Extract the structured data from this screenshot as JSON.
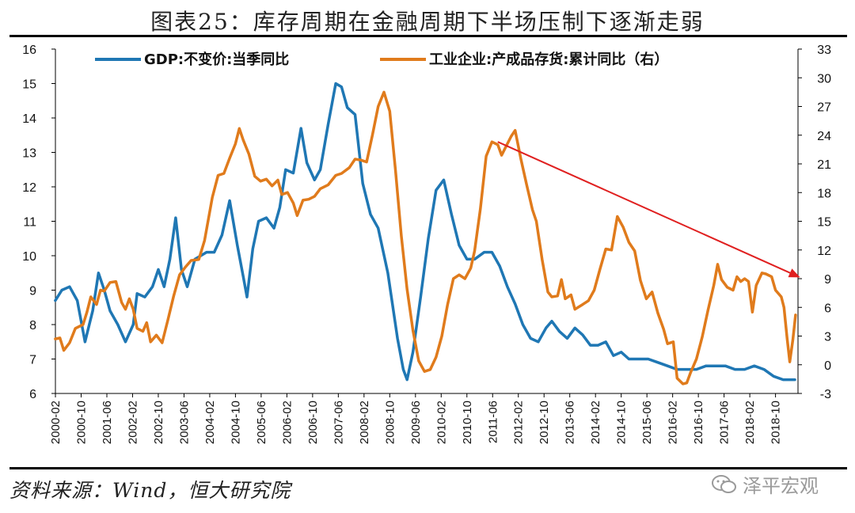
{
  "title": "图表25：库存周期在金融周期下半场压制下逐渐走弱",
  "source": "资料来源：Wind，恒大研究院",
  "watermark": "泽平宏观",
  "colors": {
    "gdp": "#1f77b4",
    "inventory": "#e07b1c",
    "arrow": "#e02020"
  },
  "chart_data": {
    "type": "line",
    "title": "图表25：库存周期在金融周期下半场压制下逐渐走弱",
    "left_axis": {
      "min": 6,
      "max": 16,
      "ticks": [
        6,
        7,
        8,
        9,
        10,
        11,
        12,
        13,
        14,
        15,
        16
      ]
    },
    "right_axis": {
      "min": -3,
      "max": 33,
      "ticks": [
        -3,
        0,
        3,
        6,
        9,
        12,
        15,
        18,
        21,
        24,
        27,
        30,
        33
      ]
    },
    "x_range": [
      2000.083,
      2019.333
    ],
    "x_tick_labels": [
      "2000-02",
      "2000-10",
      "2001-06",
      "2002-02",
      "2002-10",
      "2003-06",
      "2004-02",
      "2004-10",
      "2005-06",
      "2006-02",
      "2006-10",
      "2007-06",
      "2008-02",
      "2008-10",
      "2009-06",
      "2010-02",
      "2010-10",
      "2011-06",
      "2012-02",
      "2012-10",
      "2013-06",
      "2014-02",
      "2014-10",
      "2015-06",
      "2016-02",
      "2016-10",
      "2017-06",
      "2018-02",
      "2018-10"
    ],
    "series": [
      {
        "name": "GDP:不变价:当季同比",
        "axis": "left",
        "color": "#1f77b4",
        "points": [
          [
            2000.08,
            8.7
          ],
          [
            2000.25,
            9.0
          ],
          [
            2000.45,
            9.1
          ],
          [
            2000.65,
            8.7
          ],
          [
            2000.85,
            7.5
          ],
          [
            2001.05,
            8.4
          ],
          [
            2001.2,
            9.5
          ],
          [
            2001.35,
            9.0
          ],
          [
            2001.5,
            8.4
          ],
          [
            2001.7,
            8.0
          ],
          [
            2001.9,
            7.5
          ],
          [
            2002.1,
            8.0
          ],
          [
            2002.2,
            8.9
          ],
          [
            2002.4,
            8.8
          ],
          [
            2002.6,
            9.1
          ],
          [
            2002.75,
            9.6
          ],
          [
            2002.9,
            9.1
          ],
          [
            2003.05,
            9.9
          ],
          [
            2003.2,
            11.1
          ],
          [
            2003.35,
            9.6
          ],
          [
            2003.5,
            9.1
          ],
          [
            2003.7,
            9.9
          ],
          [
            2003.85,
            10.0
          ],
          [
            2004.0,
            10.1
          ],
          [
            2004.2,
            10.1
          ],
          [
            2004.4,
            10.6
          ],
          [
            2004.6,
            11.6
          ],
          [
            2004.8,
            10.3
          ],
          [
            2004.95,
            9.4
          ],
          [
            2005.05,
            8.8
          ],
          [
            2005.2,
            10.2
          ],
          [
            2005.35,
            11.0
          ],
          [
            2005.55,
            11.1
          ],
          [
            2005.75,
            10.8
          ],
          [
            2005.9,
            11.4
          ],
          [
            2006.05,
            12.5
          ],
          [
            2006.25,
            12.4
          ],
          [
            2006.45,
            13.7
          ],
          [
            2006.6,
            12.7
          ],
          [
            2006.8,
            12.2
          ],
          [
            2006.95,
            12.5
          ],
          [
            2007.15,
            13.8
          ],
          [
            2007.35,
            15.0
          ],
          [
            2007.5,
            14.9
          ],
          [
            2007.65,
            14.3
          ],
          [
            2007.85,
            14.1
          ],
          [
            2008.05,
            12.1
          ],
          [
            2008.25,
            11.2
          ],
          [
            2008.45,
            10.8
          ],
          [
            2008.7,
            9.5
          ],
          [
            2008.95,
            7.6
          ],
          [
            2009.1,
            6.7
          ],
          [
            2009.2,
            6.4
          ],
          [
            2009.35,
            7.2
          ],
          [
            2009.55,
            8.8
          ],
          [
            2009.75,
            10.5
          ],
          [
            2009.95,
            11.9
          ],
          [
            2010.15,
            12.2
          ],
          [
            2010.35,
            11.2
          ],
          [
            2010.55,
            10.3
          ],
          [
            2010.75,
            9.9
          ],
          [
            2010.95,
            9.9
          ],
          [
            2011.2,
            10.1
          ],
          [
            2011.4,
            10.1
          ],
          [
            2011.6,
            9.7
          ],
          [
            2011.8,
            9.1
          ],
          [
            2012.0,
            8.6
          ],
          [
            2012.2,
            8.0
          ],
          [
            2012.4,
            7.6
          ],
          [
            2012.6,
            7.5
          ],
          [
            2012.8,
            7.9
          ],
          [
            2012.95,
            8.1
          ],
          [
            2013.15,
            7.8
          ],
          [
            2013.35,
            7.6
          ],
          [
            2013.55,
            7.9
          ],
          [
            2013.75,
            7.7
          ],
          [
            2013.95,
            7.4
          ],
          [
            2014.15,
            7.4
          ],
          [
            2014.35,
            7.5
          ],
          [
            2014.55,
            7.1
          ],
          [
            2014.75,
            7.2
          ],
          [
            2014.95,
            7.0
          ],
          [
            2015.2,
            7.0
          ],
          [
            2015.45,
            7.0
          ],
          [
            2015.7,
            6.9
          ],
          [
            2015.95,
            6.8
          ],
          [
            2016.2,
            6.7
          ],
          [
            2016.45,
            6.7
          ],
          [
            2016.7,
            6.7
          ],
          [
            2016.95,
            6.8
          ],
          [
            2017.2,
            6.8
          ],
          [
            2017.45,
            6.8
          ],
          [
            2017.7,
            6.7
          ],
          [
            2017.95,
            6.7
          ],
          [
            2018.2,
            6.8
          ],
          [
            2018.45,
            6.7
          ],
          [
            2018.7,
            6.5
          ],
          [
            2018.95,
            6.4
          ],
          [
            2019.25,
            6.4
          ]
        ]
      },
      {
        "name": "工业企业:产成品存货:累计同比（右）",
        "axis": "right",
        "color": "#e07b1c",
        "points": [
          [
            2000.08,
            2.7
          ],
          [
            2000.2,
            2.8
          ],
          [
            2000.3,
            1.5
          ],
          [
            2000.45,
            2.3
          ],
          [
            2000.6,
            3.8
          ],
          [
            2000.8,
            4.2
          ],
          [
            2000.9,
            5.5
          ],
          [
            2001.0,
            7.1
          ],
          [
            2001.15,
            6.3
          ],
          [
            2001.25,
            7.8
          ],
          [
            2001.35,
            7.7
          ],
          [
            2001.5,
            8.6
          ],
          [
            2001.65,
            8.7
          ],
          [
            2001.8,
            6.5
          ],
          [
            2001.9,
            5.8
          ],
          [
            2002.0,
            6.9
          ],
          [
            2002.1,
            5.8
          ],
          [
            2002.2,
            3.8
          ],
          [
            2002.35,
            3.5
          ],
          [
            2002.45,
            4.4
          ],
          [
            2002.55,
            2.4
          ],
          [
            2002.7,
            3.1
          ],
          [
            2002.85,
            2.3
          ],
          [
            2003.0,
            4.7
          ],
          [
            2003.15,
            7.2
          ],
          [
            2003.3,
            9.4
          ],
          [
            2003.45,
            10.2
          ],
          [
            2003.6,
            10.9
          ],
          [
            2003.8,
            11.0
          ],
          [
            2003.95,
            13.0
          ],
          [
            2004.15,
            17.5
          ],
          [
            2004.3,
            19.8
          ],
          [
            2004.45,
            20.0
          ],
          [
            2004.6,
            21.6
          ],
          [
            2004.75,
            23.1
          ],
          [
            2004.85,
            24.7
          ],
          [
            2004.95,
            23.5
          ],
          [
            2005.1,
            22.0
          ],
          [
            2005.25,
            19.7
          ],
          [
            2005.4,
            19.2
          ],
          [
            2005.55,
            19.4
          ],
          [
            2005.7,
            18.7
          ],
          [
            2005.85,
            19.3
          ],
          [
            2005.95,
            17.8
          ],
          [
            2006.1,
            18.0
          ],
          [
            2006.25,
            16.9
          ],
          [
            2006.35,
            15.6
          ],
          [
            2006.5,
            17.2
          ],
          [
            2006.65,
            17.3
          ],
          [
            2006.8,
            17.6
          ],
          [
            2006.95,
            18.4
          ],
          [
            2007.15,
            18.8
          ],
          [
            2007.35,
            19.8
          ],
          [
            2007.5,
            20.0
          ],
          [
            2007.7,
            20.6
          ],
          [
            2007.85,
            21.5
          ],
          [
            2008.0,
            21.4
          ],
          [
            2008.15,
            21.2
          ],
          [
            2008.3,
            24.0
          ],
          [
            2008.45,
            27.0
          ],
          [
            2008.6,
            28.5
          ],
          [
            2008.75,
            26.5
          ],
          [
            2008.9,
            20.3
          ],
          [
            2009.05,
            13.5
          ],
          [
            2009.2,
            7.9
          ],
          [
            2009.35,
            3.6
          ],
          [
            2009.5,
            0.4
          ],
          [
            2009.65,
            -0.7
          ],
          [
            2009.8,
            -0.5
          ],
          [
            2009.95,
            0.8
          ],
          [
            2010.1,
            3.0
          ],
          [
            2010.25,
            6.3
          ],
          [
            2010.4,
            9.0
          ],
          [
            2010.55,
            9.4
          ],
          [
            2010.7,
            9.0
          ],
          [
            2010.85,
            10.1
          ],
          [
            2010.95,
            11.9
          ],
          [
            2011.1,
            16.3
          ],
          [
            2011.25,
            21.8
          ],
          [
            2011.4,
            23.3
          ],
          [
            2011.55,
            23.0
          ],
          [
            2011.65,
            21.9
          ],
          [
            2011.8,
            23.1
          ],
          [
            2011.9,
            23.9
          ],
          [
            2012.0,
            24.5
          ],
          [
            2012.15,
            21.5
          ],
          [
            2012.3,
            18.8
          ],
          [
            2012.45,
            16.2
          ],
          [
            2012.55,
            15.0
          ],
          [
            2012.7,
            11.0
          ],
          [
            2012.85,
            7.6
          ],
          [
            2012.95,
            7.1
          ],
          [
            2013.1,
            7.2
          ],
          [
            2013.2,
            8.9
          ],
          [
            2013.3,
            6.9
          ],
          [
            2013.45,
            7.3
          ],
          [
            2013.55,
            5.8
          ],
          [
            2013.75,
            6.3
          ],
          [
            2013.9,
            6.7
          ],
          [
            2014.05,
            7.8
          ],
          [
            2014.2,
            10.0
          ],
          [
            2014.35,
            12.1
          ],
          [
            2014.5,
            12.0
          ],
          [
            2014.65,
            15.5
          ],
          [
            2014.8,
            14.4
          ],
          [
            2014.95,
            12.8
          ],
          [
            2015.1,
            11.9
          ],
          [
            2015.25,
            8.8
          ],
          [
            2015.4,
            6.9
          ],
          [
            2015.55,
            7.6
          ],
          [
            2015.7,
            5.4
          ],
          [
            2015.85,
            3.7
          ],
          [
            2015.95,
            2.2
          ],
          [
            2016.1,
            2.4
          ],
          [
            2016.2,
            -1.4
          ],
          [
            2016.35,
            -2.0
          ],
          [
            2016.45,
            -1.9
          ],
          [
            2016.55,
            -0.8
          ],
          [
            2016.7,
            0.6
          ],
          [
            2016.85,
            2.9
          ],
          [
            2017.0,
            5.7
          ],
          [
            2017.15,
            8.3
          ],
          [
            2017.25,
            10.5
          ],
          [
            2017.35,
            8.9
          ],
          [
            2017.5,
            8.1
          ],
          [
            2017.65,
            7.8
          ],
          [
            2017.75,
            9.2
          ],
          [
            2017.85,
            8.7
          ],
          [
            2017.95,
            9.0
          ],
          [
            2018.05,
            8.7
          ],
          [
            2018.15,
            5.5
          ],
          [
            2018.25,
            8.3
          ],
          [
            2018.4,
            9.6
          ],
          [
            2018.5,
            9.5
          ],
          [
            2018.65,
            9.2
          ],
          [
            2018.75,
            7.8
          ],
          [
            2018.9,
            7.1
          ],
          [
            2018.97,
            6.0
          ],
          [
            2019.05,
            2.8
          ],
          [
            2019.12,
            0.3
          ],
          [
            2019.2,
            2.6
          ],
          [
            2019.27,
            5.2
          ]
        ]
      }
    ],
    "annotation": {
      "type": "arrow",
      "label": "downtrend",
      "from": [
        2011.55,
        23.3
      ],
      "to": [
        2019.35,
        9.2
      ],
      "axis": "right"
    }
  }
}
